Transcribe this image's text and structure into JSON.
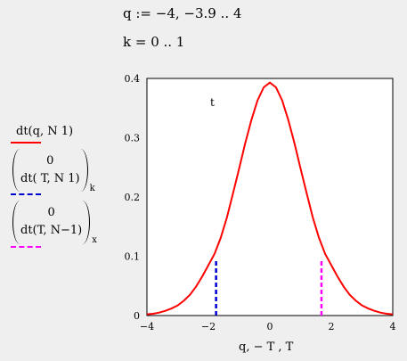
{
  "defs": {
    "range_def": "q := −4, −3.9 .. 4",
    "index_def": "k = 0 .. 1"
  },
  "legend": [
    {
      "expr": "dt(q, N 1)",
      "color": "#ff0000",
      "style": "solid"
    },
    {
      "top": "0",
      "bottom": "dt(   T, N 1)",
      "subscript": "k",
      "color": "#0000cc",
      "style": "dashed"
    },
    {
      "top": "0",
      "bottom": "dt(T, N−1)",
      "subscript": "x",
      "color": "#ff00ff",
      "style": "dashed"
    }
  ],
  "chart_data": {
    "type": "line",
    "xlabel": "q, − T , T",
    "ylabel": "",
    "xlim": [
      -4,
      4
    ],
    "ylim": [
      0,
      0.4
    ],
    "x_ticks": [
      "−4",
      "−2",
      "0",
      "2",
      "4"
    ],
    "y_ticks": [
      "0",
      "0.1",
      "0.2",
      "0.3",
      "0.4"
    ],
    "annotation": "t",
    "series": [
      {
        "color": "#ff0000",
        "style": "solid",
        "x": [
          -4.0,
          -3.8,
          -3.6,
          -3.4,
          -3.2,
          -3.0,
          -2.8,
          -2.6,
          -2.4,
          -2.2,
          -2.0,
          -1.8,
          -1.6,
          -1.4,
          -1.2,
          -1.0,
          -0.8,
          -0.6,
          -0.4,
          -0.2,
          0.0,
          0.2,
          0.4,
          0.6,
          0.8,
          1.0,
          1.2,
          1.4,
          1.6,
          1.8,
          2.0,
          2.2,
          2.4,
          2.6,
          2.8,
          3.0,
          3.2,
          3.4,
          3.6,
          3.8,
          4.0
        ],
        "y": [
          0.002,
          0.003,
          0.005,
          0.008,
          0.012,
          0.017,
          0.025,
          0.035,
          0.049,
          0.066,
          0.085,
          0.104,
          0.131,
          0.165,
          0.206,
          0.248,
          0.291,
          0.33,
          0.363,
          0.385,
          0.393,
          0.385,
          0.363,
          0.33,
          0.291,
          0.248,
          0.206,
          0.165,
          0.131,
          0.104,
          0.085,
          0.066,
          0.049,
          0.035,
          0.025,
          0.017,
          0.012,
          0.008,
          0.005,
          0.003,
          0.002
        ]
      },
      {
        "color": "#0000cc",
        "style": "dashed",
        "x": [
          -1.75,
          -1.75
        ],
        "y": [
          0,
          0.095
        ]
      },
      {
        "color": "#ff00ff",
        "style": "dashed",
        "x": [
          1.68,
          1.68
        ],
        "y": [
          0,
          0.095
        ]
      }
    ]
  }
}
